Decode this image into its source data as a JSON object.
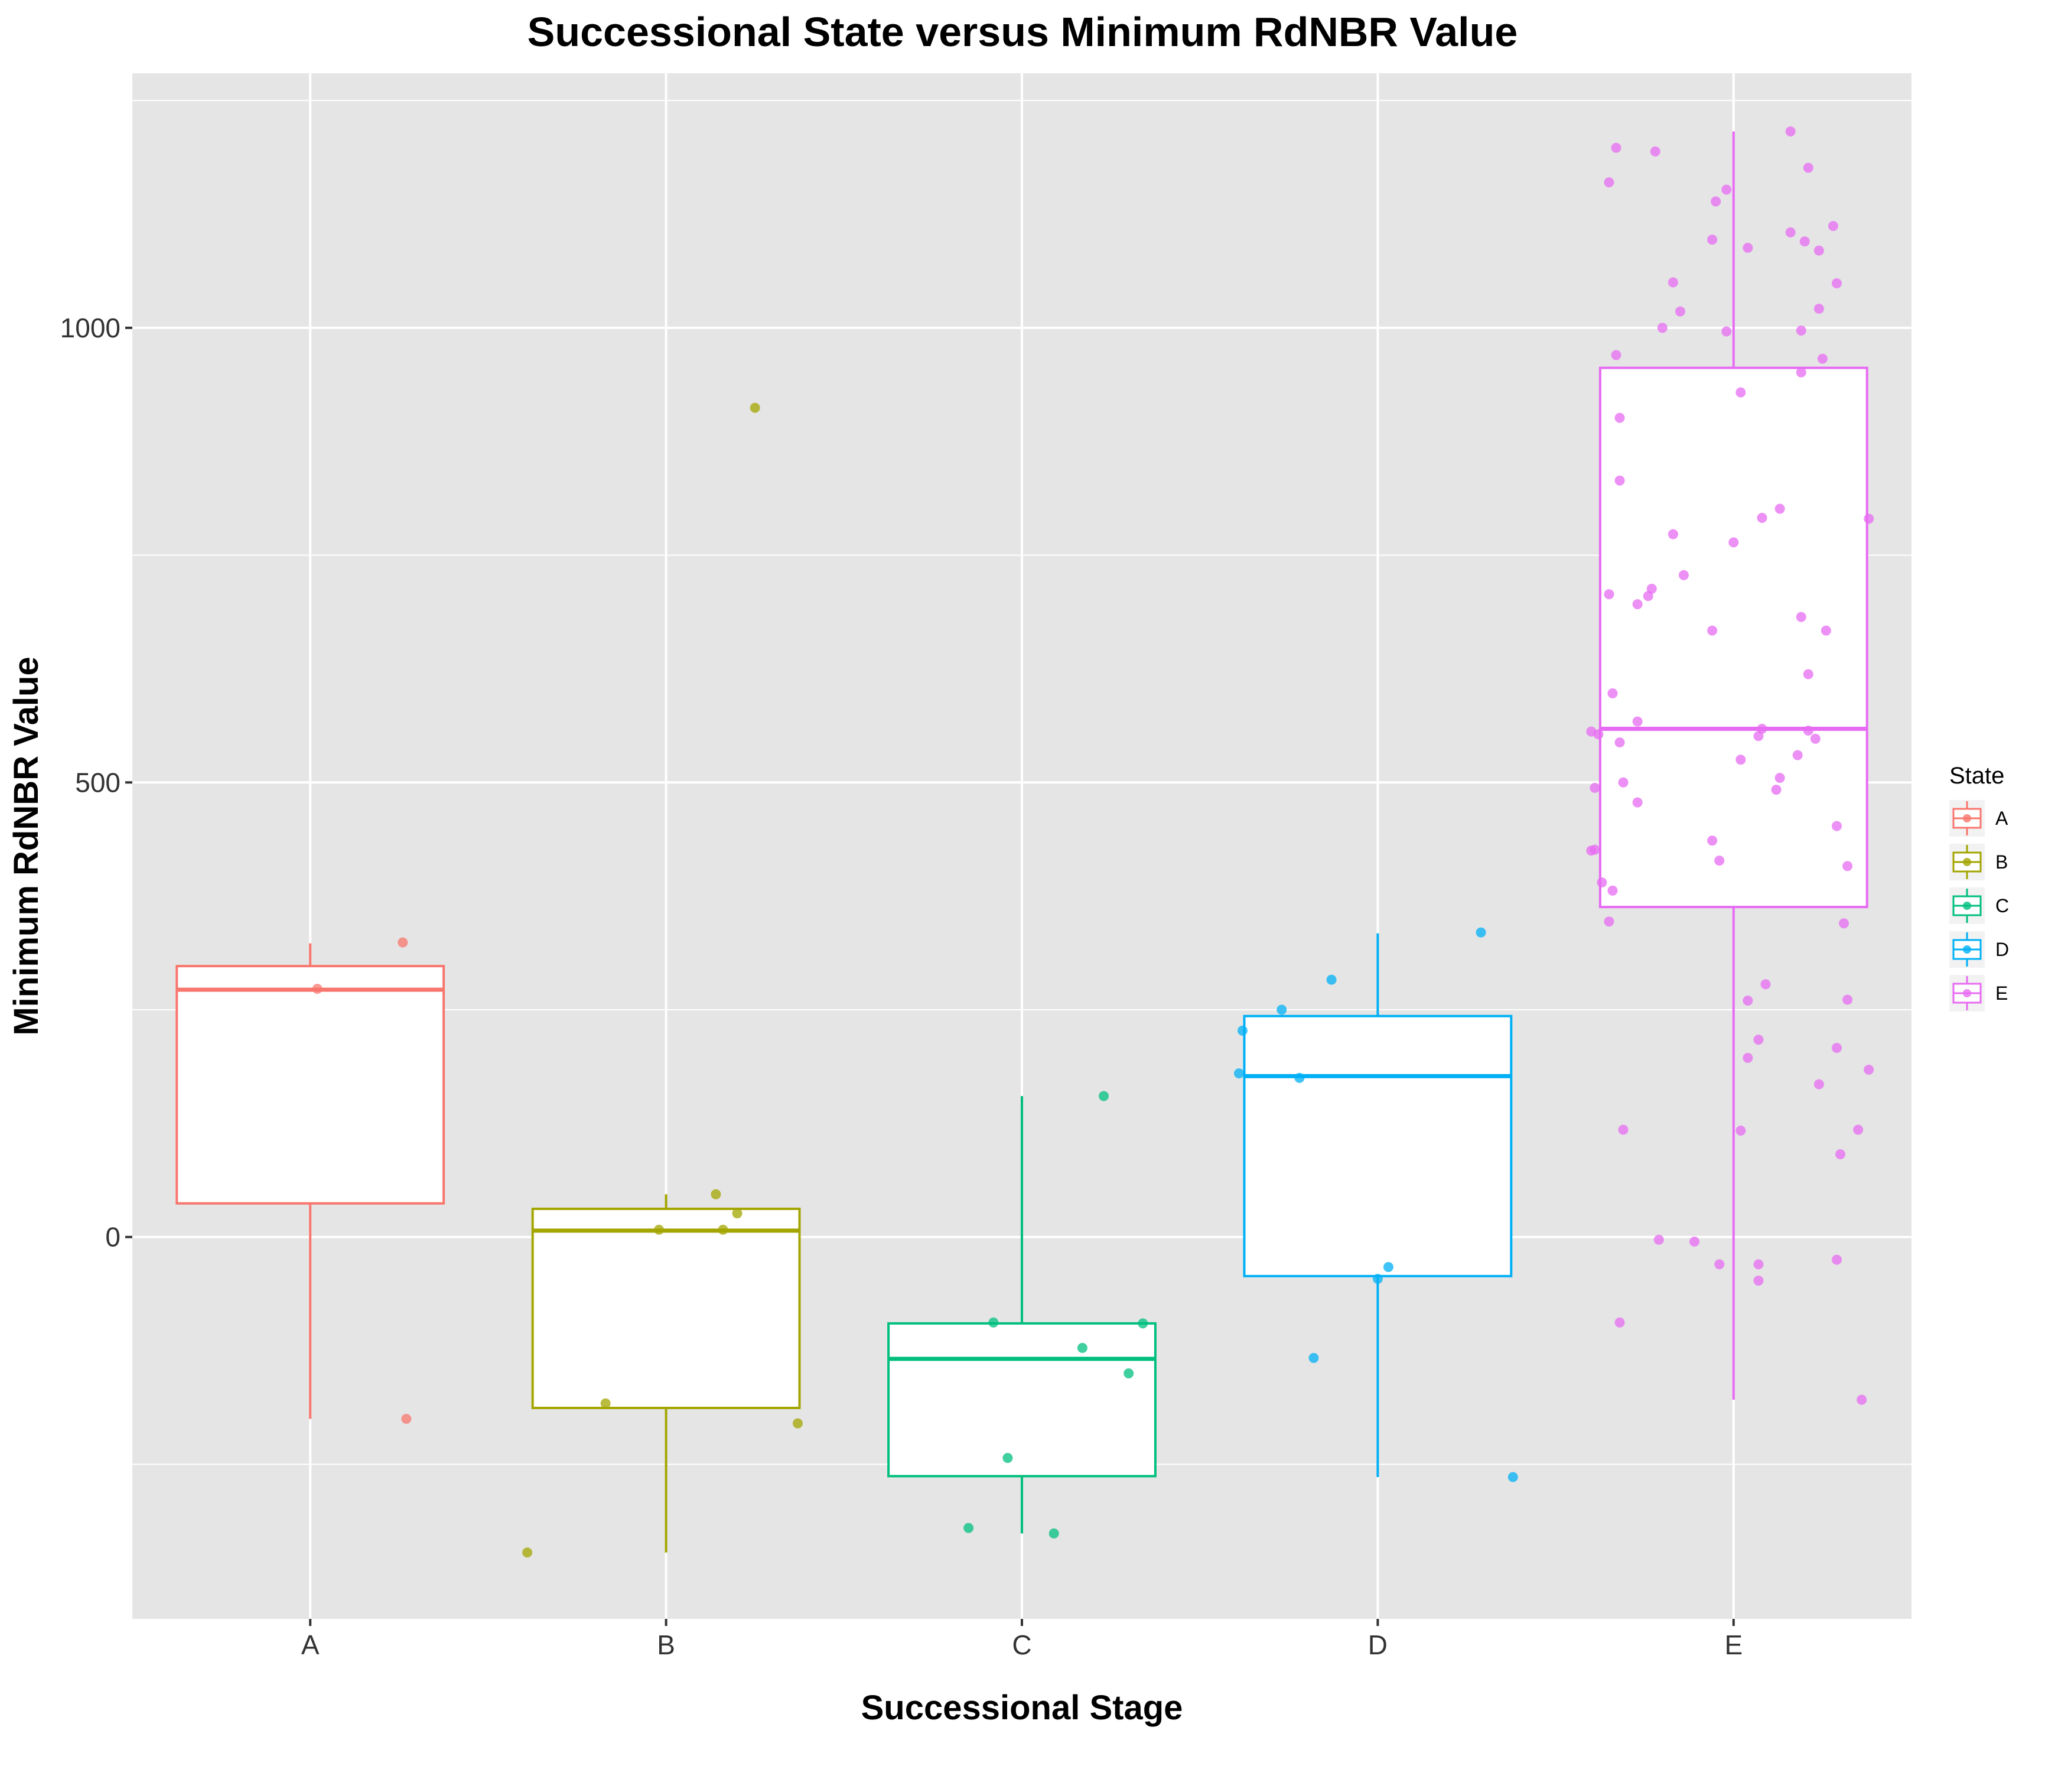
{
  "chart_data": {
    "type": "box",
    "title": "Successional State versus Minimum RdNBR Value",
    "xlabel": "Successional Stage",
    "ylabel": "Minimum RdNBR Value",
    "categories": [
      "A",
      "B",
      "C",
      "D",
      "E"
    ],
    "ylim": [
      -420,
      1280
    ],
    "yticks": [
      0,
      500,
      1000
    ],
    "grid": true,
    "legend": {
      "title": "State",
      "position": "right",
      "entries": [
        "A",
        "B",
        "C",
        "D",
        "E"
      ]
    },
    "colors": {
      "A": "#F8766D",
      "B": "#A3A500",
      "C": "#00BF7D",
      "D": "#00B0F6",
      "E": "#E76BF3"
    },
    "boxes": [
      {
        "category": "A",
        "q1": 37,
        "median": 272,
        "q3": 298,
        "whisker_low": -200,
        "whisker_high": 323
      },
      {
        "category": "B",
        "q1": -188,
        "median": 7,
        "q3": 31,
        "whisker_low": -347,
        "whisker_high": 47
      },
      {
        "category": "C",
        "q1": -263,
        "median": -134,
        "q3": -95,
        "whisker_low": -326,
        "whisker_high": 155
      },
      {
        "category": "D",
        "q1": -43,
        "median": 177,
        "q3": 243,
        "whisker_low": -264,
        "whisker_high": 334
      },
      {
        "category": "E",
        "q1": 363,
        "median": 559,
        "q3": 956,
        "whisker_low": -179,
        "whisker_high": 1216
      }
    ],
    "points": [
      {
        "category": "A",
        "jitter": 0.26,
        "y": 324
      },
      {
        "category": "A",
        "jitter": 0.02,
        "y": 273
      },
      {
        "category": "A",
        "jitter": 0.27,
        "y": -200
      },
      {
        "category": "B",
        "jitter": 0.25,
        "y": 912
      },
      {
        "category": "B",
        "jitter": 0.14,
        "y": 47
      },
      {
        "category": "B",
        "jitter": 0.2,
        "y": 26
      },
      {
        "category": "B",
        "jitter": -0.02,
        "y": 8
      },
      {
        "category": "B",
        "jitter": 0.16,
        "y": 8
      },
      {
        "category": "B",
        "jitter": -0.17,
        "y": -183
      },
      {
        "category": "B",
        "jitter": 0.37,
        "y": -205
      },
      {
        "category": "B",
        "jitter": -0.39,
        "y": -347
      },
      {
        "category": "C",
        "jitter": 0.23,
        "y": 155
      },
      {
        "category": "C",
        "jitter": -0.08,
        "y": -94
      },
      {
        "category": "C",
        "jitter": 0.34,
        "y": -95
      },
      {
        "category": "C",
        "jitter": 0.17,
        "y": -122
      },
      {
        "category": "C",
        "jitter": 0.3,
        "y": -150
      },
      {
        "category": "C",
        "jitter": -0.04,
        "y": -243
      },
      {
        "category": "C",
        "jitter": -0.15,
        "y": -320
      },
      {
        "category": "C",
        "jitter": 0.09,
        "y": -326
      },
      {
        "category": "D",
        "jitter": 0.29,
        "y": 335
      },
      {
        "category": "D",
        "jitter": -0.13,
        "y": 283
      },
      {
        "category": "D",
        "jitter": -0.27,
        "y": 250
      },
      {
        "category": "D",
        "jitter": -0.38,
        "y": 227
      },
      {
        "category": "D",
        "jitter": -0.39,
        "y": 180
      },
      {
        "category": "D",
        "jitter": -0.22,
        "y": 175
      },
      {
        "category": "D",
        "jitter": 0.03,
        "y": -33
      },
      {
        "category": "D",
        "jitter": 0.0,
        "y": -46
      },
      {
        "category": "D",
        "jitter": -0.18,
        "y": -133
      },
      {
        "category": "D",
        "jitter": 0.38,
        "y": -264
      },
      {
        "category": "E",
        "jitter": 0.16,
        "y": 1216
      },
      {
        "category": "E",
        "jitter": -0.33,
        "y": 1198
      },
      {
        "category": "E",
        "jitter": -0.22,
        "y": 1194
      },
      {
        "category": "E",
        "jitter": 0.21,
        "y": 1176
      },
      {
        "category": "E",
        "jitter": -0.35,
        "y": 1160
      },
      {
        "category": "E",
        "jitter": -0.02,
        "y": 1152
      },
      {
        "category": "E",
        "jitter": -0.05,
        "y": 1139
      },
      {
        "category": "E",
        "jitter": 0.28,
        "y": 1112
      },
      {
        "category": "E",
        "jitter": 0.16,
        "y": 1105
      },
      {
        "category": "E",
        "jitter": 0.2,
        "y": 1095
      },
      {
        "category": "E",
        "jitter": -0.06,
        "y": 1097
      },
      {
        "category": "E",
        "jitter": 0.24,
        "y": 1085
      },
      {
        "category": "E",
        "jitter": 0.04,
        "y": 1088
      },
      {
        "category": "E",
        "jitter": -0.17,
        "y": 1050
      },
      {
        "category": "E",
        "jitter": 0.29,
        "y": 1049
      },
      {
        "category": "E",
        "jitter": -0.15,
        "y": 1018
      },
      {
        "category": "E",
        "jitter": 0.24,
        "y": 1021
      },
      {
        "category": "E",
        "jitter": -0.2,
        "y": 1000
      },
      {
        "category": "E",
        "jitter": -0.02,
        "y": 996
      },
      {
        "category": "E",
        "jitter": 0.19,
        "y": 997
      },
      {
        "category": "E",
        "jitter": -0.33,
        "y": 970
      },
      {
        "category": "E",
        "jitter": 0.25,
        "y": 966
      },
      {
        "category": "E",
        "jitter": 0.19,
        "y": 951
      },
      {
        "category": "E",
        "jitter": 0.02,
        "y": 929
      },
      {
        "category": "E",
        "jitter": -0.32,
        "y": 901
      },
      {
        "category": "E",
        "jitter": -0.32,
        "y": 832
      },
      {
        "category": "E",
        "jitter": 0.13,
        "y": 801
      },
      {
        "category": "E",
        "jitter": 0.08,
        "y": 791
      },
      {
        "category": "E",
        "jitter": 0.38,
        "y": 790
      },
      {
        "category": "E",
        "jitter": -0.17,
        "y": 773
      },
      {
        "category": "E",
        "jitter": 0.0,
        "y": 764
      },
      {
        "category": "E",
        "jitter": -0.14,
        "y": 728
      },
      {
        "category": "E",
        "jitter": -0.23,
        "y": 713
      },
      {
        "category": "E",
        "jitter": -0.24,
        "y": 705
      },
      {
        "category": "E",
        "jitter": -0.35,
        "y": 707
      },
      {
        "category": "E",
        "jitter": -0.27,
        "y": 696
      },
      {
        "category": "E",
        "jitter": 0.19,
        "y": 682
      },
      {
        "category": "E",
        "jitter": -0.06,
        "y": 667
      },
      {
        "category": "E",
        "jitter": 0.26,
        "y": 667
      },
      {
        "category": "E",
        "jitter": 0.21,
        "y": 619
      },
      {
        "category": "E",
        "jitter": -0.34,
        "y": 598
      },
      {
        "category": "E",
        "jitter": -0.27,
        "y": 567
      },
      {
        "category": "E",
        "jitter": -0.4,
        "y": 556
      },
      {
        "category": "E",
        "jitter": -0.38,
        "y": 553
      },
      {
        "category": "E",
        "jitter": 0.08,
        "y": 559
      },
      {
        "category": "E",
        "jitter": 0.21,
        "y": 557
      },
      {
        "category": "E",
        "jitter": 0.07,
        "y": 551
      },
      {
        "category": "E",
        "jitter": 0.23,
        "y": 548
      },
      {
        "category": "E",
        "jitter": -0.32,
        "y": 544
      },
      {
        "category": "E",
        "jitter": 0.18,
        "y": 530
      },
      {
        "category": "E",
        "jitter": 0.02,
        "y": 525
      },
      {
        "category": "E",
        "jitter": 0.13,
        "y": 505
      },
      {
        "category": "E",
        "jitter": -0.31,
        "y": 500
      },
      {
        "category": "E",
        "jitter": 0.12,
        "y": 492
      },
      {
        "category": "E",
        "jitter": -0.39,
        "y": 494
      },
      {
        "category": "E",
        "jitter": 0.29,
        "y": 452
      },
      {
        "category": "E",
        "jitter": -0.27,
        "y": 478
      },
      {
        "category": "E",
        "jitter": -0.06,
        "y": 436
      },
      {
        "category": "E",
        "jitter": -0.4,
        "y": 425
      },
      {
        "category": "E",
        "jitter": -0.39,
        "y": 426
      },
      {
        "category": "E",
        "jitter": -0.04,
        "y": 414
      },
      {
        "category": "E",
        "jitter": 0.32,
        "y": 408
      },
      {
        "category": "E",
        "jitter": -0.37,
        "y": 390
      },
      {
        "category": "E",
        "jitter": -0.34,
        "y": 381
      },
      {
        "category": "E",
        "jitter": -0.35,
        "y": 347
      },
      {
        "category": "E",
        "jitter": 0.31,
        "y": 345
      },
      {
        "category": "E",
        "jitter": 0.09,
        "y": 278
      },
      {
        "category": "E",
        "jitter": 0.04,
        "y": 260
      },
      {
        "category": "E",
        "jitter": 0.32,
        "y": 261
      },
      {
        "category": "E",
        "jitter": 0.07,
        "y": 217
      },
      {
        "category": "E",
        "jitter": 0.29,
        "y": 208
      },
      {
        "category": "E",
        "jitter": 0.04,
        "y": 197
      },
      {
        "category": "E",
        "jitter": 0.38,
        "y": 184
      },
      {
        "category": "E",
        "jitter": 0.24,
        "y": 168
      },
      {
        "category": "E",
        "jitter": -0.31,
        "y": 118
      },
      {
        "category": "E",
        "jitter": 0.02,
        "y": 117
      },
      {
        "category": "E",
        "jitter": 0.35,
        "y": 118
      },
      {
        "category": "E",
        "jitter": 0.3,
        "y": 91
      },
      {
        "category": "E",
        "jitter": -0.21,
        "y": -3
      },
      {
        "category": "E",
        "jitter": -0.11,
        "y": -5
      },
      {
        "category": "E",
        "jitter": 0.29,
        "y": -25
      },
      {
        "category": "E",
        "jitter": -0.04,
        "y": -30
      },
      {
        "category": "E",
        "jitter": 0.07,
        "y": -30
      },
      {
        "category": "E",
        "jitter": 0.07,
        "y": -48
      },
      {
        "category": "E",
        "jitter": -0.32,
        "y": -94
      },
      {
        "category": "E",
        "jitter": 0.36,
        "y": -179
      }
    ]
  }
}
